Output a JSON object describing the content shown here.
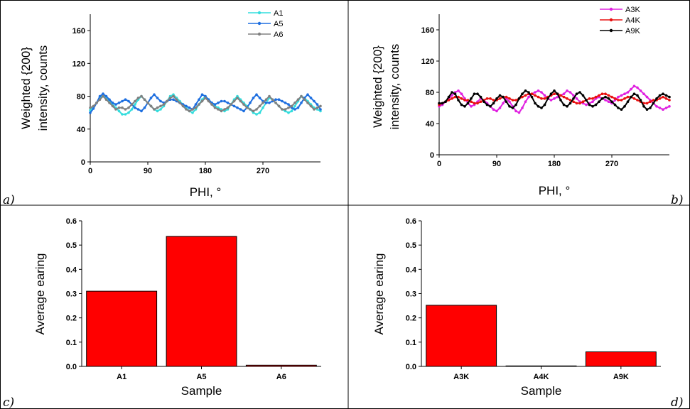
{
  "figure": {
    "panels": [
      "a)",
      "b)",
      "c)",
      "d)"
    ]
  },
  "chart_data": [
    {
      "type": "line",
      "panel_label": "a)",
      "xlabel": "PHI, °",
      "ylabel": [
        "Weighted {200}",
        "intensity, counts"
      ],
      "xlim": [
        0,
        360
      ],
      "ylim": [
        0,
        180
      ],
      "xticks": [
        "0",
        "90",
        "180",
        "270"
      ],
      "yticks": [
        "0",
        "40",
        "80",
        "120",
        "160"
      ],
      "legend_position": "top-right",
      "x": [
        0,
        5,
        10,
        15,
        20,
        25,
        30,
        35,
        40,
        45,
        50,
        55,
        60,
        65,
        70,
        75,
        80,
        85,
        90,
        95,
        100,
        105,
        110,
        115,
        120,
        125,
        130,
        135,
        140,
        145,
        150,
        155,
        160,
        165,
        170,
        175,
        180,
        185,
        190,
        195,
        200,
        205,
        210,
        215,
        220,
        225,
        230,
        235,
        240,
        245,
        250,
        255,
        260,
        265,
        270,
        275,
        280,
        285,
        290,
        295,
        300,
        305,
        310,
        315,
        320,
        325,
        330,
        335,
        340,
        345,
        350,
        355,
        360
      ],
      "series": [
        {
          "name": "A1",
          "color": "#33dddd",
          "values": [
            63,
            67,
            72,
            78,
            82,
            78,
            74,
            70,
            66,
            62,
            58,
            58,
            60,
            64,
            70,
            76,
            80,
            76,
            72,
            68,
            64,
            62,
            64,
            68,
            74,
            80,
            82,
            78,
            74,
            70,
            66,
            62,
            60,
            64,
            70,
            76,
            80,
            76,
            72,
            68,
            66,
            64,
            62,
            64,
            70,
            76,
            80,
            76,
            72,
            68,
            64,
            60,
            58,
            60,
            66,
            72,
            78,
            76,
            72,
            68,
            64,
            62,
            60,
            62,
            68,
            74,
            80,
            78,
            74,
            70,
            66,
            64,
            62
          ]
        },
        {
          "name": "A5",
          "color": "#1e6fe0",
          "values": [
            60,
            65,
            72,
            80,
            83,
            80,
            76,
            72,
            70,
            72,
            74,
            76,
            74,
            70,
            66,
            64,
            62,
            66,
            72,
            78,
            82,
            78,
            74,
            72,
            74,
            76,
            76,
            74,
            72,
            70,
            68,
            66,
            64,
            70,
            76,
            82,
            80,
            76,
            72,
            70,
            72,
            74,
            74,
            72,
            70,
            68,
            66,
            64,
            62,
            66,
            72,
            78,
            82,
            78,
            74,
            72,
            72,
            74,
            76,
            76,
            74,
            72,
            70,
            66,
            64,
            66,
            72,
            78,
            82,
            78,
            74,
            70,
            64
          ]
        },
        {
          "name": "A6",
          "color": "#808080",
          "values": [
            66,
            68,
            72,
            76,
            80,
            76,
            72,
            68,
            64,
            66,
            66,
            64,
            66,
            70,
            74,
            78,
            80,
            76,
            72,
            68,
            64,
            66,
            68,
            70,
            74,
            78,
            80,
            76,
            72,
            68,
            64,
            62,
            64,
            66,
            70,
            74,
            78,
            74,
            70,
            66,
            64,
            62,
            64,
            66,
            70,
            74,
            78,
            74,
            70,
            66,
            64,
            62,
            64,
            68,
            72,
            76,
            80,
            76,
            72,
            68,
            64,
            64,
            66,
            68,
            72,
            76,
            80,
            76,
            72,
            68,
            64,
            66,
            68
          ]
        }
      ]
    },
    {
      "type": "line",
      "panel_label": "b)",
      "xlabel": "PHI, °",
      "ylabel": [
        "Weighted {200}",
        "intensity, counts"
      ],
      "xlim": [
        0,
        360
      ],
      "ylim": [
        0,
        180
      ],
      "xticks": [
        "0",
        "90",
        "180",
        "270"
      ],
      "yticks": [
        "0",
        "40",
        "80",
        "120",
        "160"
      ],
      "legend_position": "top-right",
      "x": [
        0,
        5,
        10,
        15,
        20,
        25,
        30,
        35,
        40,
        45,
        50,
        55,
        60,
        65,
        70,
        75,
        80,
        85,
        90,
        95,
        100,
        105,
        110,
        115,
        120,
        125,
        130,
        135,
        140,
        145,
        150,
        155,
        160,
        165,
        170,
        175,
        180,
        185,
        190,
        195,
        200,
        205,
        210,
        215,
        220,
        225,
        230,
        235,
        240,
        245,
        250,
        255,
        260,
        265,
        270,
        275,
        280,
        285,
        290,
        295,
        300,
        305,
        310,
        315,
        320,
        325,
        330,
        335,
        340,
        345,
        350,
        355,
        360
      ],
      "series": [
        {
          "name": "A3K",
          "color": "#e020e0",
          "values": [
            62,
            64,
            68,
            72,
            76,
            80,
            82,
            78,
            72,
            66,
            62,
            64,
            68,
            72,
            70,
            66,
            62,
            58,
            56,
            60,
            66,
            72,
            68,
            62,
            56,
            54,
            60,
            68,
            74,
            78,
            80,
            82,
            80,
            76,
            72,
            70,
            72,
            74,
            76,
            78,
            82,
            80,
            76,
            72,
            68,
            66,
            64,
            66,
            68,
            72,
            74,
            72,
            70,
            68,
            66,
            70,
            74,
            76,
            78,
            80,
            84,
            88,
            86,
            82,
            78,
            74,
            70,
            66,
            62,
            60,
            58,
            60,
            62
          ]
        },
        {
          "name": "A4K",
          "color": "#e81010",
          "values": [
            64,
            66,
            68,
            70,
            72,
            74,
            74,
            72,
            70,
            70,
            68,
            66,
            66,
            68,
            70,
            72,
            72,
            70,
            70,
            72,
            74,
            74,
            72,
            70,
            70,
            72,
            74,
            76,
            78,
            78,
            76,
            74,
            72,
            72,
            74,
            76,
            78,
            78,
            76,
            74,
            72,
            70,
            68,
            66,
            66,
            68,
            70,
            72,
            72,
            74,
            76,
            78,
            78,
            76,
            74,
            72,
            70,
            70,
            72,
            74,
            74,
            72,
            70,
            68,
            66,
            66,
            68,
            70,
            70,
            72,
            74,
            72,
            70
          ]
        },
        {
          "name": "A9K",
          "color": "#000000",
          "values": [
            66,
            66,
            68,
            74,
            80,
            78,
            70,
            64,
            62,
            66,
            72,
            78,
            78,
            74,
            68,
            64,
            62,
            66,
            72,
            76,
            74,
            68,
            62,
            60,
            64,
            72,
            78,
            82,
            80,
            74,
            66,
            62,
            60,
            64,
            72,
            78,
            82,
            78,
            70,
            64,
            62,
            66,
            72,
            78,
            80,
            76,
            70,
            64,
            62,
            64,
            68,
            72,
            74,
            72,
            68,
            64,
            60,
            58,
            62,
            68,
            74,
            78,
            76,
            70,
            62,
            58,
            60,
            66,
            72,
            76,
            78,
            76,
            74
          ]
        }
      ]
    },
    {
      "type": "bar",
      "panel_label": "c)",
      "categories": [
        "A1",
        "A5",
        "A6"
      ],
      "values": [
        0.31,
        0.536,
        0.005
      ],
      "xlabel": "Sample",
      "ylabel": [
        "Average earing"
      ],
      "ylim": [
        0,
        0.6
      ],
      "yticks": [
        "0.0",
        "0.1",
        "0.2",
        "0.3",
        "0.4",
        "0.5",
        "0.6"
      ],
      "bar_color": "#ff0000"
    },
    {
      "type": "bar",
      "panel_label": "d)",
      "categories": [
        "A3K",
        "A4K",
        "A9K"
      ],
      "values": [
        0.252,
        0.002,
        0.06
      ],
      "xlabel": "Sample",
      "ylabel": [
        "Average earing"
      ],
      "ylim": [
        0,
        0.6
      ],
      "yticks": [
        "0.0",
        "0.1",
        "0.2",
        "0.3",
        "0.4",
        "0.5",
        "0.6"
      ],
      "bar_color": "#ff0000"
    }
  ]
}
